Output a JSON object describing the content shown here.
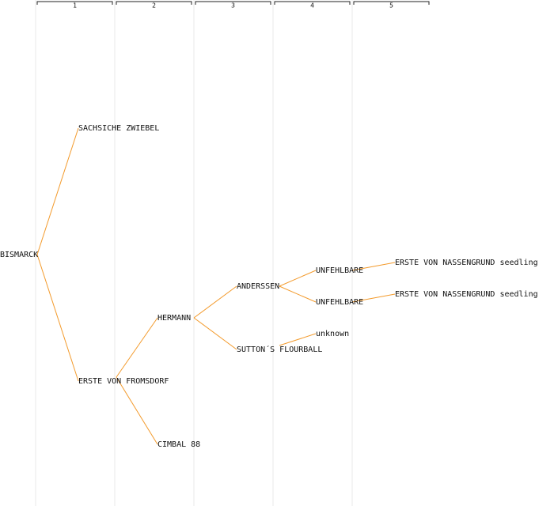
{
  "headers": [
    "1",
    "2",
    "3",
    "4",
    "5"
  ],
  "nodes": [
    {
      "label": "BISMARCK"
    },
    {
      "label": "SACHSICHE ZWIEBEL"
    },
    {
      "label": "ERSTE VON FROMSDORF"
    },
    {
      "label": "HERMANN"
    },
    {
      "label": "CIMBAL 88"
    },
    {
      "label": "ANDERSSEN"
    },
    {
      "label": "SUTTON´S FLOURBALL"
    },
    {
      "label": "UNFEHLBARE"
    },
    {
      "label": "UNFEHLBARE"
    },
    {
      "label": "unknown"
    },
    {
      "label": "ERSTE VON NASSENGRUND seedling"
    },
    {
      "label": "ERSTE VON NASSENGRUND seedling"
    }
  ]
}
